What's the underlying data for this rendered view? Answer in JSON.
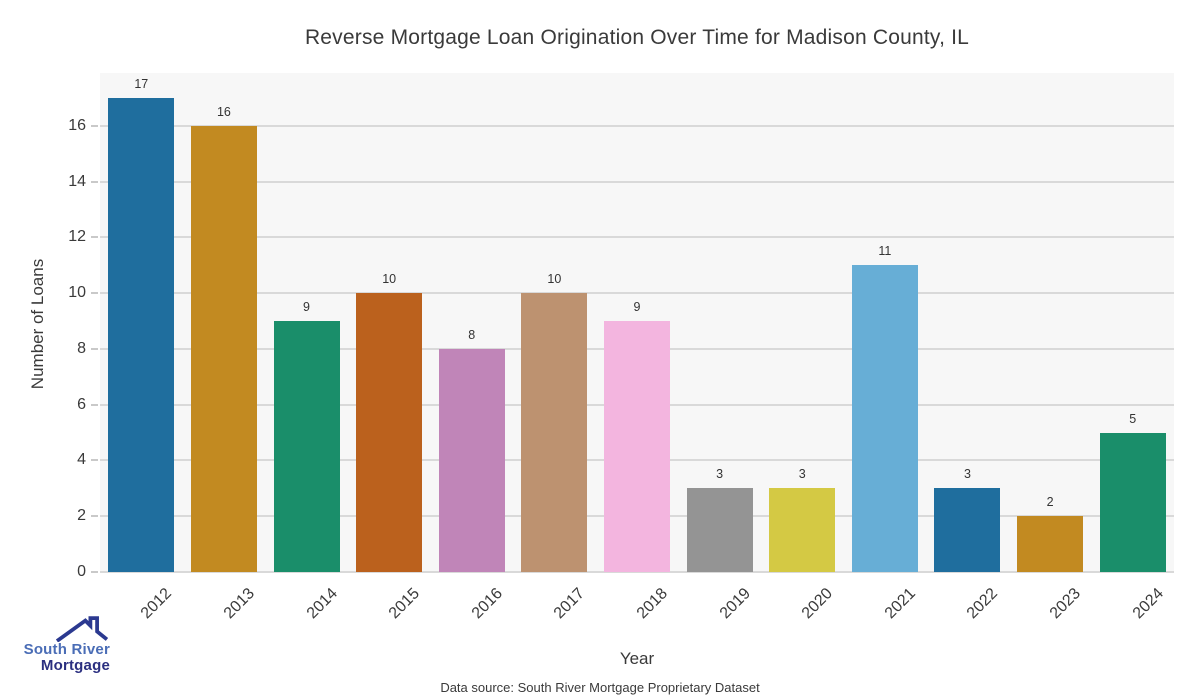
{
  "chart_data": {
    "type": "bar",
    "title": "Reverse Mortgage Loan Origination Over Time for Madison County, IL",
    "xlabel": "Year",
    "ylabel": "Number of Loans",
    "source_note": "Data source: South River Mortgage Proprietary Dataset",
    "categories": [
      "2012",
      "2013",
      "2014",
      "2015",
      "2016",
      "2017",
      "2018",
      "2019",
      "2020",
      "2021",
      "2022",
      "2023",
      "2024"
    ],
    "values": [
      17,
      16,
      9,
      10,
      8,
      10,
      9,
      3,
      3,
      11,
      3,
      2,
      5
    ],
    "bar_colors": [
      "#1f6e9e",
      "#c28a21",
      "#1a8e6a",
      "#bb611d",
      "#c085b8",
      "#bd9270",
      "#f3b5df",
      "#949494",
      "#d4c944",
      "#67aed6",
      "#1f6e9e",
      "#c28a21",
      "#1a8e6a"
    ],
    "bar_labels": [
      17,
      16,
      9,
      10,
      8,
      10,
      9,
      3,
      3,
      11,
      3,
      2,
      5
    ],
    "yticks": [
      0,
      2,
      4,
      6,
      8,
      10,
      12,
      14,
      16
    ],
    "ylim": [
      0,
      17.9
    ],
    "grid": true,
    "legend": "none",
    "plot_bg_color": "#f7f7f7",
    "grid_color": "#d9d9d9"
  },
  "logo": {
    "line1": "South River",
    "line2": "Mortgage",
    "line1_color": "#4a6db6",
    "line2_color": "#2b2f80",
    "roof_color": "#2b3990"
  }
}
